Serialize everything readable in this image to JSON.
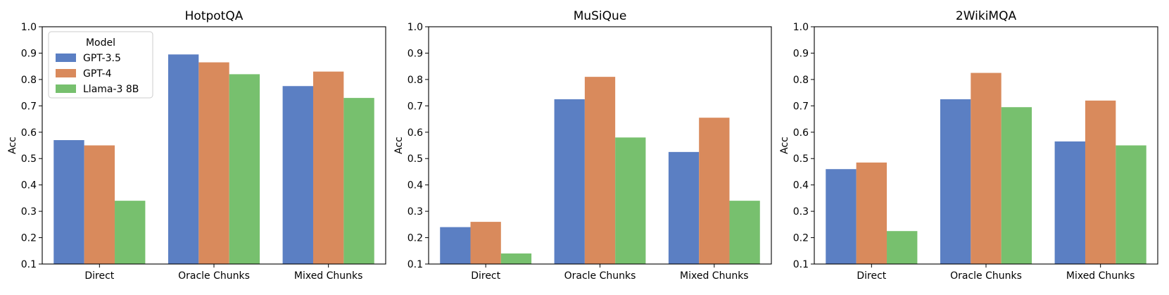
{
  "chart_data": [
    {
      "type": "bar",
      "title": "HotpotQA",
      "xlabel": "",
      "ylabel": "Acc",
      "ylim": [
        0.1,
        1.0
      ],
      "yticks": [
        "0.1",
        "0.2",
        "0.3",
        "0.4",
        "0.5",
        "0.6",
        "0.7",
        "0.8",
        "0.9",
        "1.0"
      ],
      "categories": [
        "Direct",
        "Oracle Chunks",
        "Mixed Chunks"
      ],
      "legend": {
        "title": "Model",
        "placement": "top-left"
      },
      "series": [
        {
          "name": "GPT-3.5",
          "color": "#5b7fc3",
          "values": [
            0.57,
            0.895,
            0.775
          ]
        },
        {
          "name": "GPT-4",
          "color": "#d98a5c",
          "values": [
            0.55,
            0.865,
            0.83
          ]
        },
        {
          "name": "Llama-3 8B",
          "color": "#77c06e",
          "values": [
            0.34,
            0.82,
            0.73
          ]
        }
      ]
    },
    {
      "type": "bar",
      "title": "MuSiQue",
      "xlabel": "",
      "ylabel": "Acc",
      "ylim": [
        0.1,
        1.0
      ],
      "yticks": [
        "0.1",
        "0.2",
        "0.3",
        "0.4",
        "0.5",
        "0.6",
        "0.7",
        "0.8",
        "0.9",
        "1.0"
      ],
      "categories": [
        "Direct",
        "Oracle Chunks",
        "Mixed Chunks"
      ],
      "series": [
        {
          "name": "GPT-3.5",
          "color": "#5b7fc3",
          "values": [
            0.24,
            0.725,
            0.525
          ]
        },
        {
          "name": "GPT-4",
          "color": "#d98a5c",
          "values": [
            0.26,
            0.81,
            0.655
          ]
        },
        {
          "name": "Llama-3 8B",
          "color": "#77c06e",
          "values": [
            0.14,
            0.58,
            0.34
          ]
        }
      ]
    },
    {
      "type": "bar",
      "title": "2WikiMQA",
      "xlabel": "",
      "ylabel": "Acc",
      "ylim": [
        0.1,
        1.0
      ],
      "yticks": [
        "0.1",
        "0.2",
        "0.3",
        "0.4",
        "0.5",
        "0.6",
        "0.7",
        "0.8",
        "0.9",
        "1.0"
      ],
      "categories": [
        "Direct",
        "Oracle Chunks",
        "Mixed Chunks"
      ],
      "series": [
        {
          "name": "GPT-3.5",
          "color": "#5b7fc3",
          "values": [
            0.46,
            0.725,
            0.565
          ]
        },
        {
          "name": "GPT-4",
          "color": "#d98a5c",
          "values": [
            0.485,
            0.825,
            0.72
          ]
        },
        {
          "name": "Llama-3 8B",
          "color": "#77c06e",
          "values": [
            0.225,
            0.695,
            0.55
          ]
        }
      ]
    }
  ]
}
